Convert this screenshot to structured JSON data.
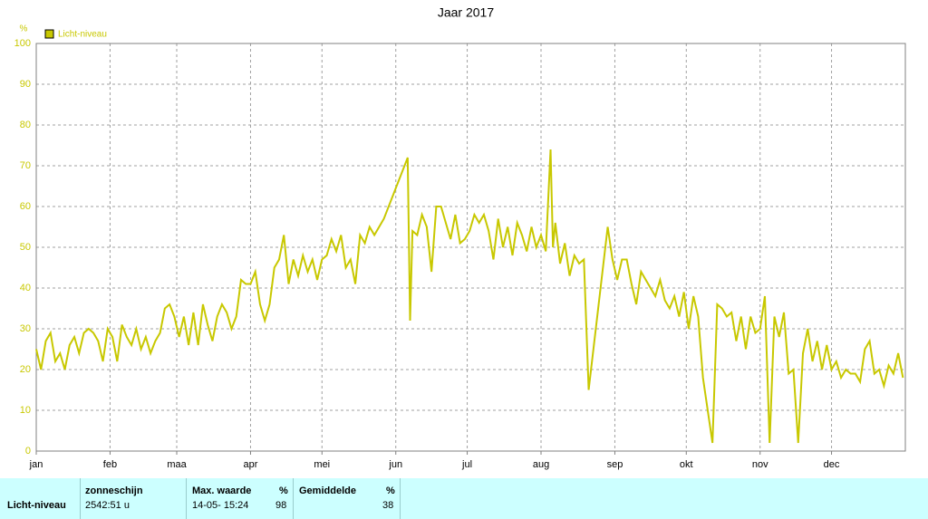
{
  "chart_data": {
    "type": "line",
    "title": "Jaar 2017",
    "ylabel": "%",
    "xlim": [
      0,
      365
    ],
    "xticks": [
      {
        "value": 0,
        "label": "jan"
      },
      {
        "value": 31,
        "label": "feb"
      },
      {
        "value": 59,
        "label": "maa"
      },
      {
        "value": 90,
        "label": "apr"
      },
      {
        "value": 120,
        "label": "mei"
      },
      {
        "value": 151,
        "label": "jun"
      },
      {
        "value": 181,
        "label": "jul"
      },
      {
        "value": 212,
        "label": "aug"
      },
      {
        "value": 243,
        "label": "sep"
      },
      {
        "value": 273,
        "label": "okt"
      },
      {
        "value": 304,
        "label": "nov"
      },
      {
        "value": 334,
        "label": "dec"
      }
    ],
    "ylim": [
      0,
      100
    ],
    "yticks": [
      0,
      10,
      20,
      30,
      40,
      50,
      60,
      70,
      80,
      90,
      100
    ],
    "grid": true,
    "legend": "top-left",
    "x": [
      0,
      2,
      4,
      6,
      8,
      10,
      12,
      14,
      16,
      18,
      20,
      22,
      24,
      26,
      28,
      30,
      32,
      34,
      36,
      38,
      40,
      42,
      44,
      46,
      48,
      50,
      52,
      54,
      56,
      58,
      60,
      62,
      64,
      66,
      68,
      70,
      72,
      74,
      76,
      78,
      80,
      82,
      84,
      86,
      88,
      90,
      92,
      94,
      96,
      98,
      100,
      102,
      104,
      106,
      108,
      110,
      112,
      114,
      116,
      118,
      120,
      122,
      124,
      126,
      128,
      130,
      132,
      134,
      136,
      138,
      140,
      142,
      144,
      146,
      156,
      157,
      158,
      160,
      162,
      164,
      166,
      168,
      170,
      172,
      174,
      176,
      178,
      180,
      182,
      184,
      186,
      188,
      190,
      192,
      194,
      196,
      198,
      200,
      202,
      204,
      206,
      208,
      210,
      212,
      214,
      216,
      217,
      218,
      220,
      222,
      224,
      226,
      228,
      230,
      232,
      240,
      242,
      244,
      246,
      248,
      250,
      252,
      254,
      256,
      258,
      260,
      262,
      264,
      266,
      268,
      270,
      272,
      274,
      276,
      278,
      280,
      284,
      286,
      288,
      290,
      292,
      294,
      296,
      298,
      300,
      302,
      304,
      306,
      308,
      310,
      312,
      314,
      316,
      318,
      320,
      322,
      324,
      326,
      328,
      330,
      332,
      334,
      336,
      338,
      340,
      342,
      344,
      346,
      348,
      350,
      352,
      354,
      356,
      358,
      360,
      362,
      364
    ],
    "series": [
      {
        "name": "Licht-niveau",
        "color": "#c8c800",
        "values": [
          25,
          20,
          27,
          29,
          22,
          24,
          20,
          26,
          28,
          24,
          29,
          30,
          29,
          27,
          22,
          30,
          28,
          22,
          31,
          28,
          26,
          30,
          25,
          28,
          24,
          27,
          29,
          35,
          36,
          33,
          28,
          33,
          26,
          34,
          26,
          36,
          31,
          27,
          33,
          36,
          34,
          30,
          33,
          42,
          41,
          41,
          44,
          36,
          32,
          36,
          45,
          47,
          53,
          41,
          47,
          43,
          48,
          44,
          47,
          42,
          47,
          48,
          52,
          49,
          53,
          45,
          47,
          41,
          53,
          51,
          55,
          53,
          55,
          57,
          72,
          32,
          54,
          53,
          58,
          55,
          44,
          60,
          60,
          56,
          52,
          58,
          51,
          52,
          54,
          58,
          56,
          58,
          54,
          47,
          57,
          50,
          55,
          48,
          56,
          53,
          49,
          55,
          50,
          53,
          49,
          74,
          50,
          56,
          46,
          51,
          43,
          48,
          46,
          47,
          15,
          55,
          47,
          42,
          47,
          47,
          41,
          36,
          44,
          42,
          40,
          38,
          42,
          37,
          35,
          38,
          33,
          39,
          30,
          38,
          33,
          18,
          2,
          36,
          35,
          33,
          34,
          27,
          33,
          25,
          33,
          29,
          30,
          38,
          2,
          33,
          28,
          34,
          19,
          20,
          2,
          24,
          30,
          22,
          27,
          20,
          26,
          20,
          22,
          18,
          20,
          19,
          19,
          17,
          25,
          27,
          19,
          20,
          16,
          21,
          19,
          24,
          18
        ]
      }
    ]
  },
  "summary": {
    "row_label": "Licht-niveau",
    "columns": [
      {
        "header": "zonneschijn",
        "value": "2542:51 u"
      },
      {
        "header": "Max. waarde",
        "unit": "%",
        "date": "14-05- 15:24",
        "value": 98
      },
      {
        "header": "Gemiddelde",
        "unit": "%",
        "value": 38
      }
    ]
  }
}
